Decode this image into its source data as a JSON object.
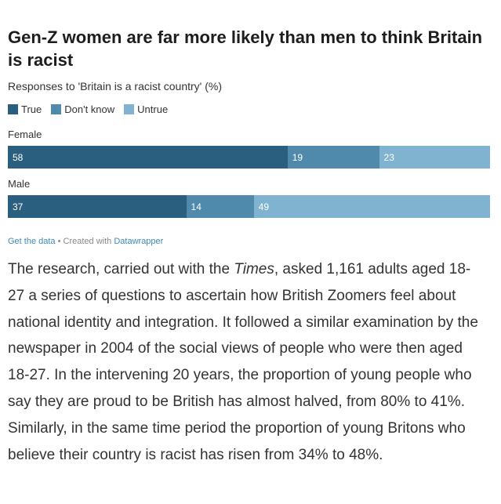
{
  "chart_data": {
    "type": "bar",
    "stacked": true,
    "orientation": "horizontal",
    "title": "Gen-Z women are far more likely than men to think Britain is racist",
    "subtitle": "Responses to 'Britain is a racist country' (%)",
    "categories": [
      "Female",
      "Male"
    ],
    "series": [
      {
        "name": "True",
        "values": [
          58,
          37
        ],
        "color": "#2a5f80"
      },
      {
        "name": "Don't know",
        "values": [
          19,
          14
        ],
        "color": "#4f89ab"
      },
      {
        "name": "Untrue",
        "values": [
          23,
          49
        ],
        "color": "#7fb3d0"
      }
    ],
    "xlim": [
      0,
      100
    ],
    "legend": "top-left",
    "grid": false
  },
  "footer": {
    "get_data": "Get the data",
    "separator": " • Created with ",
    "tool": "Datawrapper"
  },
  "article": {
    "p1_before": "The research, carried out with the ",
    "p1_italic": "Times",
    "p1_after": ", asked 1,161 adults aged 18-27 a series of questions to ascertain how British Zoomers feel about national identity and integration. It followed a similar examination by the newspaper in 2004 of the social views of people who were then aged 18-27. In the intervening 20 years, the proportion of young people who say they are proud to be British has almost halved, from 80% to 41%. Similarly, in the same time period the proportion of young Britons who believe their country is racist has risen from 34% to 48%."
  }
}
